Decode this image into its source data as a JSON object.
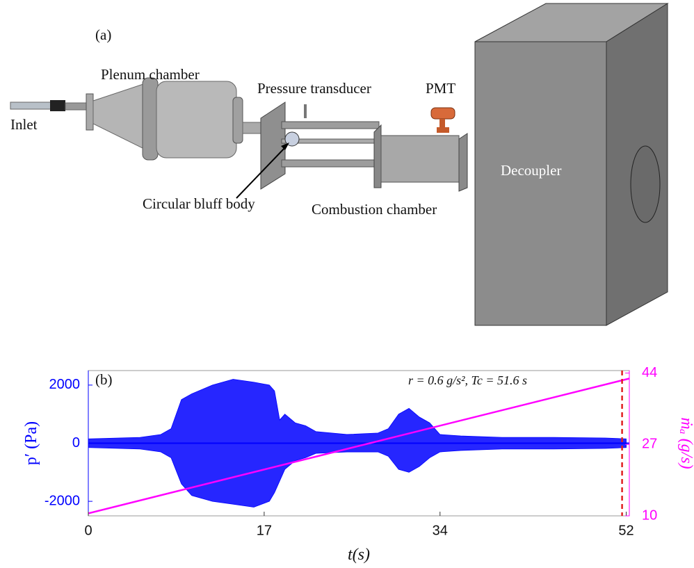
{
  "figure_a": {
    "label": "(a)",
    "labels": {
      "plenum": "Plenum chamber",
      "inlet": "Inlet",
      "transducer": "Pressure transducer",
      "pmt": "PMT",
      "bluff_body": "Circular bluff body",
      "combustor": "Combustion chamber",
      "decoupler": "Decoupler"
    }
  },
  "chart_data": {
    "type": "line",
    "panel_label": "(b)",
    "annotation": "r = 0.6 g/s², Tc = 51.6 s",
    "xlabel": "t(s)",
    "ylabel": "p′ (Pa)",
    "y2label": "ṁₐ (g/s)",
    "xlim": [
      0,
      52.3
    ],
    "xticks": [
      0,
      17,
      34,
      52
    ],
    "ylim": [
      -2500,
      2500
    ],
    "yticks": [
      -2000,
      0,
      2000
    ],
    "y2lim": [
      10,
      44.6
    ],
    "y2ticks": [
      10,
      27,
      44
    ],
    "pressure": {
      "color": "#0000ff",
      "x": [
        0,
        5,
        7,
        8,
        9,
        10,
        12,
        14,
        16,
        17.5,
        18,
        18.5,
        19,
        20,
        21,
        22,
        25,
        28,
        29,
        30,
        31,
        32,
        33,
        34,
        36,
        40,
        45,
        50,
        52
      ],
      "upper": [
        150,
        200,
        300,
        500,
        1500,
        1700,
        2000,
        2200,
        2100,
        2000,
        1800,
        800,
        1000,
        700,
        600,
        400,
        300,
        350,
        500,
        1000,
        1200,
        900,
        700,
        300,
        250,
        200,
        200,
        180,
        150
      ],
      "lower": [
        -150,
        -200,
        -300,
        -500,
        -1400,
        -1800,
        -2000,
        -2100,
        -2200,
        -2000,
        -1700,
        -1300,
        -900,
        -600,
        -500,
        -350,
        -300,
        -300,
        -450,
        -900,
        -1000,
        -800,
        -500,
        -300,
        -250,
        -200,
        -200,
        -180,
        -150
      ]
    },
    "series": [
      {
        "color": "#ff00ff",
        "axis": "y2",
        "x": [
          0,
          52.3
        ],
        "values": [
          10.6,
          42.7
        ]
      }
    ],
    "critical_time": {
      "x": 51.6,
      "color": "#e02020"
    }
  }
}
